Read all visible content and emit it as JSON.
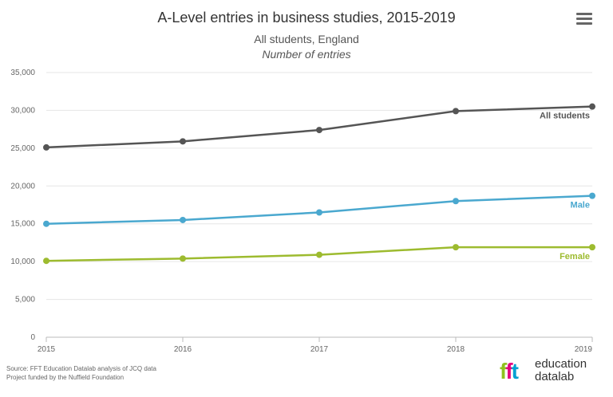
{
  "chart_data": {
    "type": "line",
    "title": "A-Level entries in business studies, 2015-2019",
    "subtitle": "All students, England",
    "ylabel_caption": "Number of entries",
    "x": [
      "2015",
      "2016",
      "2017",
      "2018",
      "2019"
    ],
    "ylim": [
      0,
      35000
    ],
    "yticks": [
      0,
      5000,
      10000,
      15000,
      20000,
      25000,
      30000,
      35000
    ],
    "ytick_labels": [
      "0",
      "5,000",
      "10,000",
      "15,000",
      "20,000",
      "25,000",
      "30,000",
      "35,000"
    ],
    "grid": true,
    "series": [
      {
        "name": "All students",
        "color": "#555555",
        "values": [
          25100,
          25900,
          27400,
          29900,
          30500
        ]
      },
      {
        "name": "Male",
        "color": "#4aa8cf",
        "values": [
          15000,
          15500,
          16500,
          18000,
          18700
        ]
      },
      {
        "name": "Female",
        "color": "#9dbb2f",
        "values": [
          10100,
          10400,
          10900,
          11900,
          11900
        ]
      }
    ]
  },
  "menu_icon": "hamburger-menu-icon",
  "source_lines": [
    "Source: FFT Education Datalab analysis of JCQ data",
    "Project funded by the Nuffield Foundation"
  ],
  "logo": {
    "mark": "fft",
    "word1": "education",
    "word2": "datalab"
  }
}
